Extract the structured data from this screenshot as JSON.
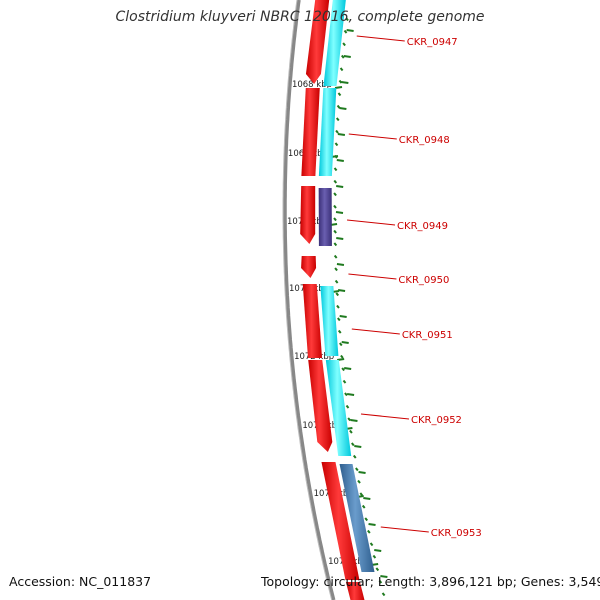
{
  "header": {
    "title": "Clostridium kluyveri NBRC 12016, complete genome"
  },
  "footer": {
    "accession": "Accession: NC_011837",
    "topology": "Topology: circular; Length: 3,896,121 bp; Genes: 3,549"
  },
  "colors": {
    "backbone": "#888888",
    "tick": "#1f7a1f",
    "gene_red": "#ff0000",
    "gene_cyan": "#00ffff",
    "gene_purple": "#4b3f8c",
    "gene_blue": "#4a7fb0",
    "label": "#cc0000"
  },
  "ruler": [
    {
      "label": "1068 kbp"
    },
    {
      "label": "1069 kbp"
    },
    {
      "label": "1070 kbp"
    },
    {
      "label": "1071 kbp"
    },
    {
      "label": "1072 kbp"
    },
    {
      "label": "1073 kbp"
    },
    {
      "label": "1074 kbp"
    },
    {
      "label": "1075 kbp"
    }
  ],
  "genes": [
    {
      "label": "CKR_0947"
    },
    {
      "label": "CKR_0948"
    },
    {
      "label": "CKR_0949"
    },
    {
      "label": "CKR_0950"
    },
    {
      "label": "CKR_0951"
    },
    {
      "label": "CKR_0952"
    },
    {
      "label": "CKR_0953"
    }
  ]
}
